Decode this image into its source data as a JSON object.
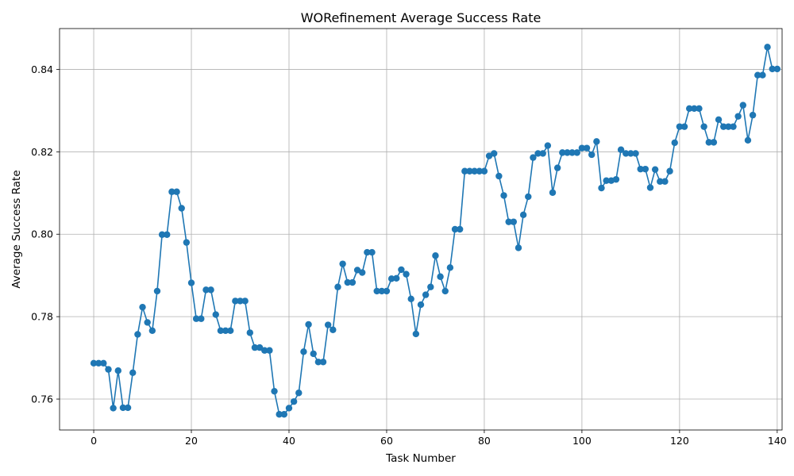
{
  "chart_data": {
    "type": "line",
    "title": "WORefinement Average Success Rate",
    "xlabel": "Task Number",
    "ylabel": "Average Success Rate",
    "xlim": [
      -7,
      141
    ],
    "ylim": [
      0.7525,
      0.8499
    ],
    "xticks": [
      0,
      20,
      40,
      60,
      80,
      100,
      120,
      140
    ],
    "yticks": [
      0.76,
      0.78,
      0.8,
      0.82,
      0.84
    ],
    "ytick_labels": [
      "0.76",
      "0.78",
      "0.80",
      "0.82",
      "0.84"
    ],
    "grid": true,
    "marker": "circle",
    "color": "#1f77b4",
    "series": [
      {
        "values": [
          0.7687,
          0.7687,
          0.7687,
          0.7672,
          0.7578,
          0.7669,
          0.7579,
          0.7579,
          0.7664,
          0.7757,
          0.7823,
          0.7786,
          0.7766,
          0.7862,
          0.7999,
          0.7999,
          0.8103,
          0.8103,
          0.8063,
          0.798,
          0.7882,
          0.7795,
          0.7795,
          0.7865,
          0.7865,
          0.7805,
          0.7766,
          0.7766,
          0.7766,
          0.7838,
          0.7838,
          0.7838,
          0.7761,
          0.7725,
          0.7725,
          0.7718,
          0.7718,
          0.7619,
          0.7563,
          0.7563,
          0.7578,
          0.7594,
          0.7615,
          0.7715,
          0.7781,
          0.771,
          0.769,
          0.769,
          0.778,
          0.7768,
          0.7872,
          0.7928,
          0.7883,
          0.7883,
          0.7913,
          0.7907,
          0.7956,
          0.7956,
          0.7862,
          0.7862,
          0.7862,
          0.7892,
          0.7893,
          0.7914,
          0.7903,
          0.7843,
          0.7758,
          0.7829,
          0.7853,
          0.7872,
          0.7948,
          0.7897,
          0.7862,
          0.7919,
          0.8012,
          0.8012,
          0.8153,
          0.8153,
          0.8153,
          0.8153,
          0.8153,
          0.819,
          0.8196,
          0.8141,
          0.8094,
          0.803,
          0.803,
          0.7967,
          0.8047,
          0.8091,
          0.8186,
          0.8196,
          0.8196,
          0.8215,
          0.8101,
          0.8161,
          0.8198,
          0.8198,
          0.8198,
          0.8198,
          0.8209,
          0.8209,
          0.8193,
          0.8225,
          0.8112,
          0.813,
          0.813,
          0.8133,
          0.8205,
          0.8196,
          0.8196,
          0.8196,
          0.8158,
          0.8158,
          0.8113,
          0.8157,
          0.8128,
          0.8128,
          0.8153,
          0.8222,
          0.8261,
          0.8261,
          0.8305,
          0.8305,
          0.8305,
          0.8261,
          0.8223,
          0.8223,
          0.8278,
          0.8261,
          0.8261,
          0.8261,
          0.8286,
          0.8313,
          0.8228,
          0.8289,
          0.8386,
          0.8386,
          0.8454,
          0.8401,
          0.8401
        ]
      }
    ]
  }
}
